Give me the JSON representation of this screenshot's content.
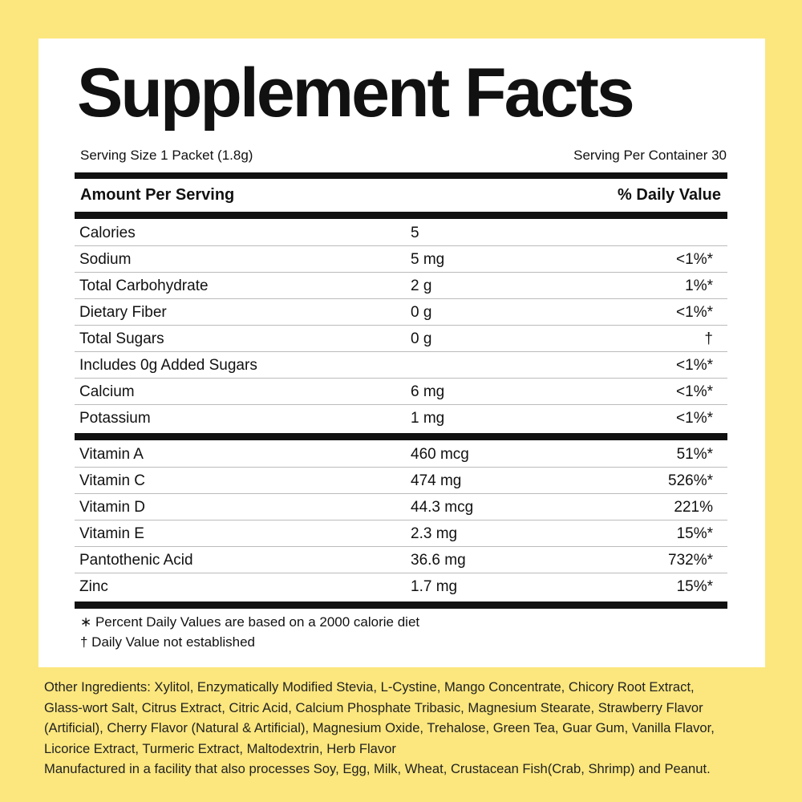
{
  "title": "Supplement Facts",
  "serving": {
    "size": "Serving Size 1 Packet (1.8g)",
    "per_container": "Serving Per Container 30"
  },
  "header": {
    "amount": "Amount Per Serving",
    "daily_value": "% Daily Value"
  },
  "sections": [
    {
      "rows": [
        {
          "name": "Calories",
          "amount": "5"
        },
        {
          "name": "Sodium",
          "amount": "5 mg",
          "daily_value": "<1%*"
        },
        {
          "name": "Total Carbohydrate",
          "amount": "2 g",
          "daily_value": "1%*"
        },
        {
          "name": "Dietary Fiber",
          "amount": "0 g",
          "daily_value": "<1%*"
        },
        {
          "name": "Total Sugars",
          "amount": "0 g",
          "daily_value": "†"
        },
        {
          "name": "Includes 0g Added Sugars",
          "daily_value": "<1%*"
        },
        {
          "name": "Calcium",
          "amount": "6 mg",
          "daily_value": "<1%*"
        },
        {
          "name": "Potassium",
          "amount": "1 mg",
          "daily_value": "<1%*"
        }
      ]
    },
    {
      "rows": [
        {
          "name": "Vitamin A",
          "amount": "460 mcg",
          "daily_value": "51%*"
        },
        {
          "name": "Vitamin C",
          "amount": "474 mg",
          "daily_value": "526%*"
        },
        {
          "name": "Vitamin D",
          "amount": "44.3 mcg",
          "daily_value": "221%"
        },
        {
          "name": "Vitamin E",
          "amount": "2.3 mg",
          "daily_value": "15%*"
        },
        {
          "name": "Pantothenic Acid",
          "amount": "36.6 mg",
          "daily_value": "732%*"
        },
        {
          "name": "Zinc",
          "amount": "1.7 mg",
          "daily_value": "15%*"
        }
      ]
    }
  ],
  "footnotes": [
    "∗ Percent Daily Values are based on a 2000 calorie diet",
    "† Daily Value not established"
  ],
  "ingredients": {
    "lines": [
      "Other Ingredients: Xylitol, Enzymatically Modified Stevia, L-Cystine, Mango Concentrate, Chicory Root Extract,",
      "Glass-wort Salt, Citrus Extract, Citric Acid, Calcium Phosphate Tribasic, Magnesium Stearate, Strawberry Flavor",
      "(Artificial), Cherry Flavor (Natural & Artificial), Magnesium Oxide, Trehalose, Green Tea, Guar Gum, Vanilla Flavor,",
      "Licorice Extract, Turmeric Extract, Maltodextrin, Herb Flavor",
      "Manufactured in a facility that also processes Soy, Egg, Milk, Wheat, Crustacean Fish(Crab, Shrimp) and Peanut."
    ]
  }
}
